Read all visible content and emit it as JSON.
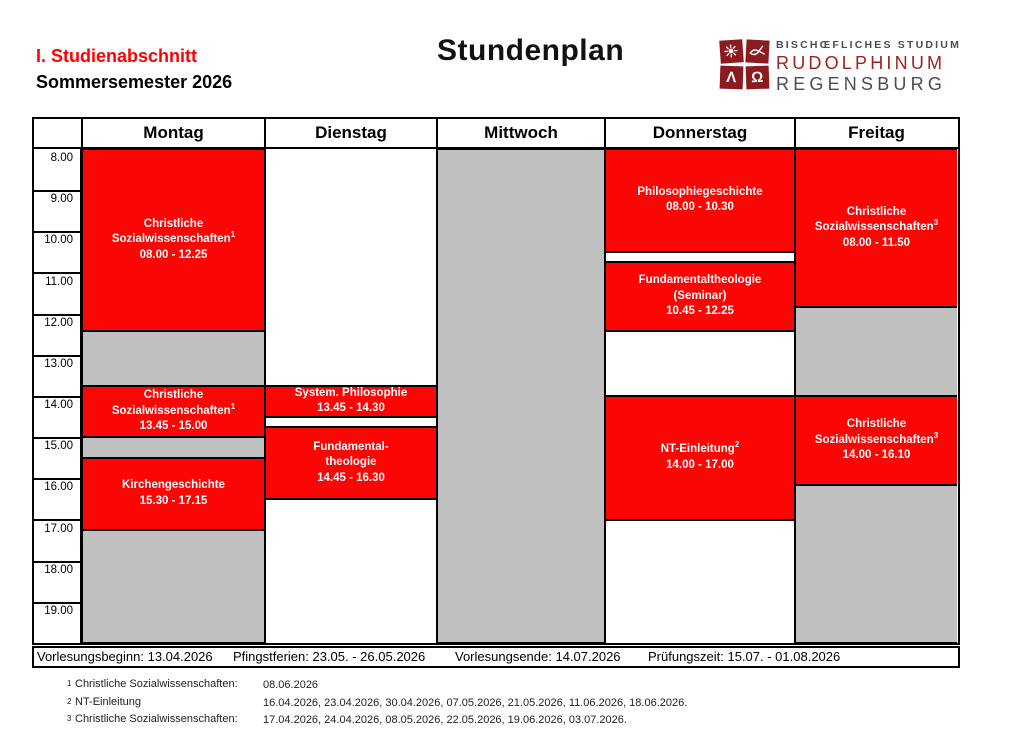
{
  "header": {
    "section": "I. Studienabschnitt",
    "semester": "Sommersemester 2026",
    "title": "Stundenplan"
  },
  "logo": {
    "line1": "BISCHŒFLICHES STUDIUM",
    "line2": "RUDOLPHINUM",
    "line3": "REGENSBURG",
    "symbols": [
      "sun-icon",
      "fish-icon",
      "lambda-glyph",
      "omega-glyph"
    ],
    "lambda": "Λ",
    "omega": "Ω",
    "square_color": "#8C1B20",
    "name_color": "#9B2422",
    "text_color": "#4D4D4D"
  },
  "colors": {
    "accent_red": "#FF0000",
    "course_red": "#FB0505",
    "blocked_gray": "#C0C0C0"
  },
  "timetable": {
    "days": [
      "Montag",
      "Dienstag",
      "Mittwoch",
      "Donnerstag",
      "Freitag"
    ],
    "hours": [
      "8.00",
      "9.00",
      "10.00",
      "11.00",
      "12.00",
      "13.00",
      "14.00",
      "15.00",
      "16.00",
      "17.00",
      "18.00",
      "19.00"
    ],
    "events": [
      {
        "day": 0,
        "type": "course",
        "start": 8.0,
        "end": 12.4167,
        "lines": [
          {
            "t": "Christliche"
          },
          {
            "t": "Sozialwissenschaften",
            "sup": "1"
          },
          {
            "t": "08.00 - 12.25"
          }
        ]
      },
      {
        "day": 0,
        "type": "blocked",
        "start": 12.4167,
        "end": 13.75,
        "lines": []
      },
      {
        "day": 0,
        "type": "course",
        "start": 13.75,
        "end": 15.0,
        "lines": [
          {
            "t": "Christliche"
          },
          {
            "t": "Sozialwissenschaften",
            "sup": "1"
          },
          {
            "t": "13.45 - 15.00"
          }
        ]
      },
      {
        "day": 0,
        "type": "blocked",
        "start": 15.0,
        "end": 15.5,
        "lines": []
      },
      {
        "day": 0,
        "type": "course",
        "start": 15.5,
        "end": 17.25,
        "lines": [
          {
            "t": "Kirchengeschichte"
          },
          {
            "t": "15.30 - 17.15"
          }
        ]
      },
      {
        "day": 0,
        "type": "blocked",
        "start": 17.25,
        "end": 20.0,
        "lines": []
      },
      {
        "day": 1,
        "type": "course",
        "start": 13.75,
        "end": 14.5,
        "lines": [
          {
            "t": "System. Philosophie"
          },
          {
            "t": "13.45 - 14.30"
          }
        ]
      },
      {
        "day": 1,
        "type": "course",
        "start": 14.75,
        "end": 16.5,
        "lines": [
          {
            "t": "Fundamental-"
          },
          {
            "t": "theologie"
          },
          {
            "t": "14.45 - 16.30"
          }
        ]
      },
      {
        "day": 2,
        "type": "blocked",
        "start": 8.0,
        "end": 20.0,
        "lines": []
      },
      {
        "day": 3,
        "type": "course",
        "start": 8.0,
        "end": 10.5,
        "lines": [
          {
            "t": "Philosophiegeschichte"
          },
          {
            "t": "08.00 - 10.30"
          }
        ]
      },
      {
        "day": 3,
        "type": "course",
        "start": 10.75,
        "end": 12.4167,
        "lines": [
          {
            "t": "Fundamentaltheologie"
          },
          {
            "t": "(Seminar)"
          },
          {
            "t": "10.45 - 12.25"
          }
        ]
      },
      {
        "day": 3,
        "type": "course",
        "start": 14.0,
        "end": 17.0,
        "lines": [
          {
            "t": "NT-Einleitung",
            "sup": "2"
          },
          {
            "t": "14.00 - 17.00"
          }
        ]
      },
      {
        "day": 4,
        "type": "course",
        "start": 8.0,
        "end": 11.8333,
        "lines": [
          {
            "t": "Christliche"
          },
          {
            "t": "Sozialwissenschaften",
            "sup": "3"
          },
          {
            "t": "08.00 - 11.50"
          }
        ]
      },
      {
        "day": 4,
        "type": "blocked",
        "start": 11.8333,
        "end": 14.0,
        "lines": []
      },
      {
        "day": 4,
        "type": "course",
        "start": 14.0,
        "end": 16.1667,
        "lines": [
          {
            "t": "Christliche"
          },
          {
            "t": "Sozialwissenschaften",
            "sup": "3"
          },
          {
            "t": "14.00 - 16.10"
          }
        ]
      },
      {
        "day": 4,
        "type": "blocked",
        "start": 16.1667,
        "end": 20.0,
        "lines": []
      }
    ]
  },
  "footer": {
    "items": [
      "Vorlesungsbeginn: 13.04.2026",
      "Pfingstferien: 23.05. - 26.05.2026",
      "Vorlesungsende: 14.07.2026",
      "Prüfungszeit: 15.07. - 01.08.2026"
    ]
  },
  "footnotes": [
    {
      "sup": "1",
      "label": "Christliche Sozialwissenschaften:",
      "dates": "08.06.2026"
    },
    {
      "sup": "2",
      "label": "NT-Einleitung",
      "dates": "16.04.2026, 23.04.2026, 30.04.2026, 07.05.2026, 21.05.2026, 11.06.2026, 18.06.2026."
    },
    {
      "sup": "3",
      "label": "Christliche Sozialwissenschaften:",
      "dates": "17.04.2026, 24.04.2026, 08.05.2026, 22.05.2026, 19.06.2026, 03.07.2026."
    }
  ]
}
